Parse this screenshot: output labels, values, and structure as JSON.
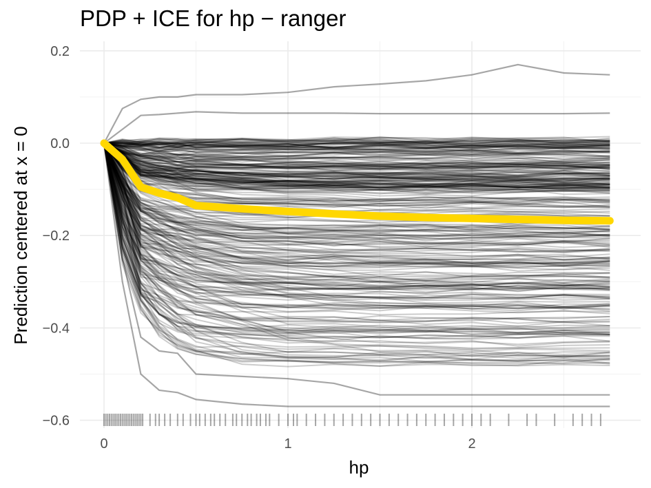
{
  "chart_data": {
    "type": "line",
    "title": "PDP + ICE for hp − ranger",
    "xlabel": "hp",
    "ylabel": "Prediction centered at x = 0",
    "xlim": [
      0,
      2.75
    ],
    "ylim": [
      -0.6,
      0.2
    ],
    "xticks": [
      0,
      1,
      2
    ],
    "xtick_labels": [
      "0",
      "1",
      "2"
    ],
    "yticks": [
      0.2,
      0.0,
      -0.2,
      -0.4,
      -0.6
    ],
    "ytick_labels": [
      "0.2",
      "0.0",
      "−0.2",
      "−0.4",
      "−0.6"
    ],
    "grid": true,
    "x": [
      0,
      0.1,
      0.2,
      0.3,
      0.4,
      0.5,
      0.75,
      1.0,
      1.25,
      1.5,
      1.75,
      2.0,
      2.25,
      2.5,
      2.75
    ],
    "series": [
      {
        "name": "",
        "role": "pdp",
        "color": "#FFD700",
        "values": [
          0.0,
          -0.035,
          -0.095,
          -0.108,
          -0.118,
          -0.135,
          -0.142,
          -0.148,
          -0.153,
          -0.158,
          -0.161,
          -0.163,
          -0.165,
          -0.167,
          -0.168
        ]
      }
    ],
    "ice_color": "#000000",
    "ice_examples": [
      {
        "values": [
          0.0,
          0.075,
          0.095,
          0.1,
          0.1,
          0.105,
          0.105,
          0.11,
          0.122,
          0.128,
          0.135,
          0.148,
          0.17,
          0.152,
          0.148
        ]
      },
      {
        "values": [
          0.0,
          0.03,
          0.06,
          0.062,
          0.065,
          0.068,
          0.065,
          0.065,
          0.065,
          0.064,
          0.064,
          0.064,
          0.064,
          0.064,
          0.065
        ]
      },
      {
        "values": [
          0.0,
          -0.3,
          -0.5,
          -0.535,
          -0.54,
          -0.555,
          -0.565,
          -0.57,
          -0.57,
          -0.57,
          -0.57,
          -0.57,
          -0.57,
          -0.57,
          -0.57
        ]
      },
      {
        "values": [
          0.0,
          -0.25,
          -0.42,
          -0.45,
          -0.455,
          -0.5,
          -0.505,
          -0.51,
          -0.52,
          -0.545,
          -0.545,
          -0.545,
          -0.545,
          -0.545,
          -0.545
        ]
      },
      {
        "values": [
          0.0,
          -0.02,
          -0.04,
          -0.05,
          -0.055,
          -0.06,
          -0.065,
          -0.07,
          -0.072,
          -0.075,
          -0.078,
          -0.08,
          -0.08,
          -0.08,
          -0.08
        ]
      }
    ],
    "rug_x": [
      0.0,
      0.01,
      0.02,
      0.03,
      0.04,
      0.05,
      0.06,
      0.07,
      0.08,
      0.09,
      0.1,
      0.11,
      0.12,
      0.13,
      0.14,
      0.15,
      0.16,
      0.17,
      0.18,
      0.19,
      0.2,
      0.21,
      0.25,
      0.28,
      0.3,
      0.33,
      0.36,
      0.4,
      0.43,
      0.47,
      0.5,
      0.52,
      0.55,
      0.58,
      0.6,
      0.63,
      0.66,
      0.7,
      0.72,
      0.75,
      0.78,
      0.8,
      0.83,
      0.85,
      0.88,
      0.9,
      0.95,
      1.0,
      1.03,
      1.05,
      1.1,
      1.15,
      1.2,
      1.25,
      1.3,
      1.35,
      1.4,
      1.45,
      1.5,
      1.55,
      1.6,
      1.65,
      1.7,
      1.75,
      1.8,
      1.85,
      1.9,
      1.95,
      2.0,
      2.05,
      2.1,
      2.2,
      2.3,
      2.35,
      2.45,
      2.55,
      2.6,
      2.65,
      2.7
    ]
  }
}
